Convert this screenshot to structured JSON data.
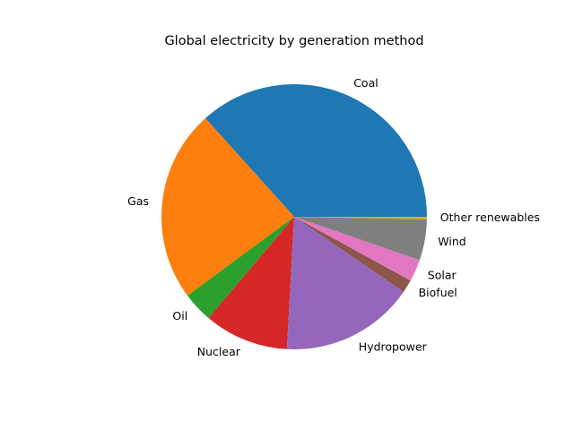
{
  "chart_data": {
    "type": "pie",
    "title": "Global electricity by generation method",
    "slices": [
      {
        "label": "Coal",
        "value": 36.7,
        "color": "#1f77b4"
      },
      {
        "label": "Gas",
        "value": 23.5,
        "color": "#ff7f0e"
      },
      {
        "label": "Oil",
        "value": 3.7,
        "color": "#2ca02c"
      },
      {
        "label": "Nuclear",
        "value": 10.3,
        "color": "#d62728"
      },
      {
        "label": "Hydropower",
        "value": 16.3,
        "color": "#9467bd"
      },
      {
        "label": "Biofuel",
        "value": 1.6,
        "color": "#8c564b"
      },
      {
        "label": "Solar",
        "value": 2.7,
        "color": "#e377c2"
      },
      {
        "label": "Wind",
        "value": 5.0,
        "color": "#7f7f7f"
      },
      {
        "label": "Other renewables",
        "value": 0.3,
        "color": "#bcbd22"
      }
    ],
    "start_angle_deg": 0,
    "direction": "counterclockwise",
    "legend": "none"
  }
}
